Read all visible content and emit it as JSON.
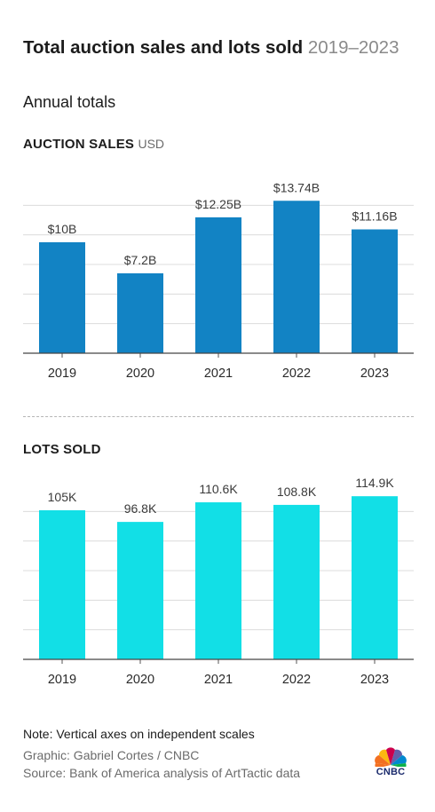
{
  "header": {
    "title": "Total auction sales and lots sold",
    "title_range": "2019–2023",
    "subtitle": "Annual totals"
  },
  "chart_data": [
    {
      "type": "bar",
      "section_label": "AUCTION SALES",
      "unit": "USD",
      "categories": [
        "2019",
        "2020",
        "2021",
        "2022",
        "2023"
      ],
      "values": [
        10,
        7.2,
        12.25,
        13.74,
        11.16
      ],
      "data_labels": [
        "$10B",
        "$7.2B",
        "$12.25B",
        "$13.74B",
        "$11.16B"
      ],
      "ylim": [
        0,
        16
      ],
      "grid": true,
      "color": "#1283c4"
    },
    {
      "type": "bar",
      "section_label": "LOTS SOLD",
      "categories": [
        "2019",
        "2020",
        "2021",
        "2022",
        "2023"
      ],
      "values": [
        105,
        96.8,
        110.6,
        108.8,
        114.9
      ],
      "data_labels": [
        "105K",
        "96.8K",
        "110.6K",
        "108.8K",
        "114.9K"
      ],
      "ylim": [
        0,
        125
      ],
      "grid": true,
      "color": "#12dfe6"
    }
  ],
  "footer": {
    "note": "Note: Vertical axes on independent scales",
    "graphic": "Graphic: Gabriel Cortes / CNBC",
    "source": "Source: Bank of America analysis of ArtTactic data",
    "logo_text": "CNBC"
  }
}
